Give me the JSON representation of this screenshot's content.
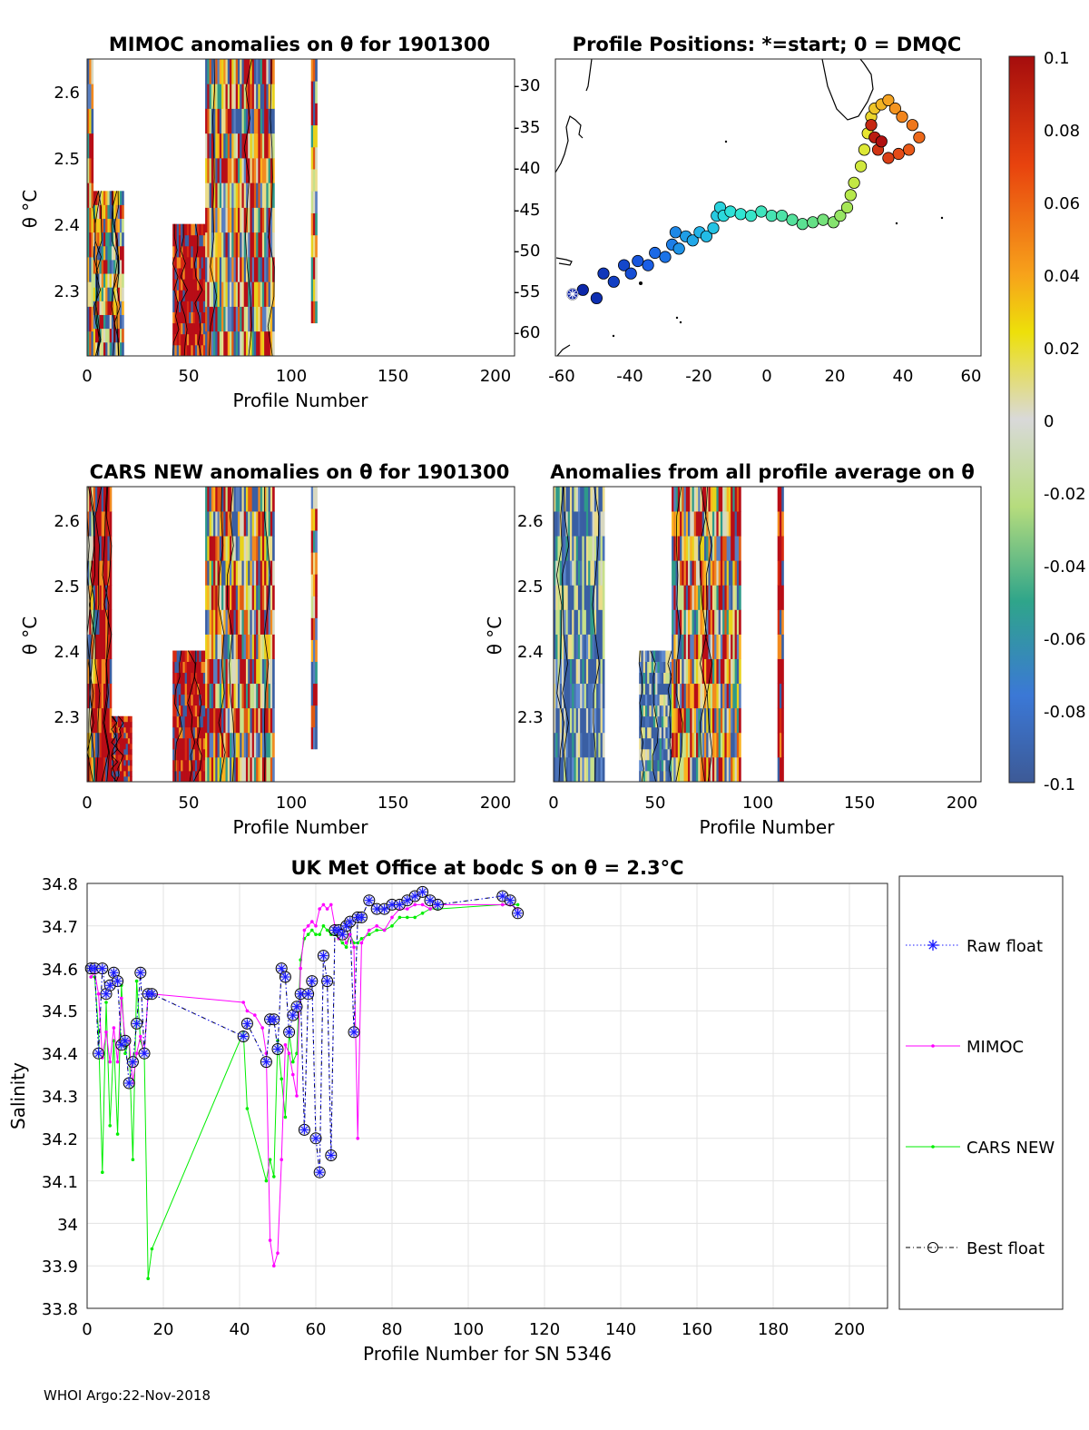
{
  "footer": "WHOI Argo:22-Nov-2018",
  "colors": {
    "map_hi": "#b80d17",
    "map_lo": "#3a5fa3",
    "contour": "#000000",
    "mimoc": "#ff00ff",
    "cars": "#00ee00",
    "raw": "#1a1aff",
    "best": "#000000"
  },
  "chart_data": [
    {
      "id": "mimoc",
      "type": "heatmap",
      "title": "MIMOC anomalies on θ  for 1901300",
      "xlabel": "Profile Number",
      "ylabel": "θ °C",
      "xlim": [
        0,
        210
      ],
      "ylim": [
        2.2,
        2.65
      ],
      "xticks": [
        "0",
        "50",
        "100",
        "150",
        "200"
      ],
      "yticks": [
        "2.3",
        "2.4",
        "2.5",
        "2.6"
      ],
      "columns": [
        [
          0,
          3,
          "2.2-2.65",
          "mixed"
        ],
        [
          3,
          12,
          "2.2-2.45",
          "mixed"
        ],
        [
          12,
          18,
          "2.2-2.45",
          "mixed"
        ],
        [
          42,
          58,
          "2.2-2.4",
          "high"
        ],
        [
          58,
          92,
          "2.2-2.65",
          "mixed"
        ],
        [
          110,
          113,
          "2.25-2.65",
          "mixed"
        ]
      ]
    },
    {
      "id": "positions",
      "type": "scatter",
      "title": "Profile Positions: *=start; 0 = DMQC",
      "xlim": [
        -62,
        62
      ],
      "ylim": [
        -63,
        -27
      ],
      "xticks": [
        "-60",
        "-40",
        "-20",
        "0",
        "20",
        "40",
        "60"
      ],
      "yticks": [
        "-30",
        "-35",
        "-40",
        "-45",
        "-50",
        "-55",
        "-60"
      ],
      "start": [
        -57,
        -55.5
      ],
      "track": [
        [
          -57,
          -55.5
        ],
        [
          -54,
          -55
        ],
        [
          -50,
          -56
        ],
        [
          -48,
          -53
        ],
        [
          -45,
          -54
        ],
        [
          -42,
          -52
        ],
        [
          -40,
          -53
        ],
        [
          -38,
          -51.5
        ],
        [
          -35,
          -52
        ],
        [
          -33,
          -50.5
        ],
        [
          -30,
          -51
        ],
        [
          -28,
          -49.5
        ],
        [
          -27,
          -48
        ],
        [
          -26,
          -50
        ],
        [
          -24,
          -48.5
        ],
        [
          -22,
          -49
        ],
        [
          -20,
          -48
        ],
        [
          -18,
          -48.5
        ],
        [
          -16,
          -47.5
        ],
        [
          -15,
          -46
        ],
        [
          -14,
          -45
        ],
        [
          -13,
          -46
        ],
        [
          -11,
          -45.5
        ],
        [
          -8,
          -45.8
        ],
        [
          -5,
          -46
        ],
        [
          -2,
          -45.5
        ],
        [
          1,
          -46
        ],
        [
          4,
          -46
        ],
        [
          7,
          -46.5
        ],
        [
          10,
          -47
        ],
        [
          13,
          -46.8
        ],
        [
          16,
          -46.5
        ],
        [
          19,
          -46.8
        ],
        [
          21,
          -46
        ],
        [
          23,
          -45
        ],
        [
          24,
          -43.5
        ],
        [
          25,
          -42
        ],
        [
          27,
          -40
        ],
        [
          28,
          -38
        ],
        [
          29,
          -36
        ],
        [
          30,
          -34
        ],
        [
          31,
          -33
        ],
        [
          33,
          -32.5
        ],
        [
          35,
          -32
        ],
        [
          37,
          -33
        ],
        [
          39,
          -34
        ],
        [
          42,
          -35
        ],
        [
          44,
          -36.5
        ],
        [
          41,
          -38
        ],
        [
          38,
          -38.5
        ],
        [
          35,
          -39
        ],
        [
          32,
          -38
        ],
        [
          30,
          -35
        ],
        [
          31,
          -36.5
        ],
        [
          33,
          -37
        ]
      ]
    },
    {
      "id": "cars",
      "type": "heatmap",
      "title": "CARS NEW anomalies on θ for 1901300",
      "xlabel": "Profile Number",
      "ylabel": "θ °C",
      "xlim": [
        0,
        210
      ],
      "ylim": [
        2.2,
        2.65
      ],
      "xticks": [
        "0",
        "50",
        "100",
        "150",
        "200"
      ],
      "yticks": [
        "2.3",
        "2.4",
        "2.5",
        "2.6"
      ],
      "columns": [
        [
          0,
          4,
          "2.2-2.65",
          "mixed"
        ],
        [
          4,
          12,
          "2.2-2.65",
          "high"
        ],
        [
          12,
          22,
          "2.2-2.3",
          "high"
        ],
        [
          42,
          58,
          "2.2-2.4",
          "high"
        ],
        [
          58,
          92,
          "2.2-2.65",
          "mixed"
        ],
        [
          110,
          113,
          "2.25-2.65",
          "mixed"
        ]
      ]
    },
    {
      "id": "avg",
      "type": "heatmap",
      "title": "Anomalies from all profile average on θ",
      "xlabel": "Profile Number",
      "ylabel": "θ °C",
      "xlim": [
        0,
        210
      ],
      "ylim": [
        2.2,
        2.65
      ],
      "xticks": [
        "0",
        "50",
        "100",
        "150",
        "200"
      ],
      "yticks": [
        "2.3",
        "2.4",
        "2.5",
        "2.6"
      ],
      "columns": [
        [
          0,
          25,
          "2.2-2.65",
          "low"
        ],
        [
          42,
          58,
          "2.2-2.4",
          "low"
        ],
        [
          58,
          92,
          "2.2-2.65",
          "mixed"
        ],
        [
          110,
          113,
          "2.2-2.65",
          "high"
        ]
      ]
    },
    {
      "id": "colorbar",
      "type": "colorbar",
      "ticks": [
        "0.1",
        "0.08",
        "0.06",
        "0.04",
        "0.02",
        "0",
        "-0.02",
        "-0.04",
        "-0.06",
        "-0.08",
        "-0.1"
      ],
      "range": [
        -0.1,
        0.1
      ]
    },
    {
      "id": "salinity",
      "type": "line",
      "title": "UK Met Office at bodc S on θ = 2.3°C",
      "xlabel": "Profile Number for SN 5346",
      "ylabel": "Salinity",
      "xlim": [
        0,
        210
      ],
      "ylim": [
        33.8,
        34.8
      ],
      "xticks": [
        "0",
        "20",
        "40",
        "60",
        "80",
        "100",
        "120",
        "140",
        "160",
        "180",
        "200"
      ],
      "yticks": [
        "34.8",
        "34.7",
        "34.6",
        "34.5",
        "34.4",
        "34.3",
        "34.2",
        "34.1",
        "34",
        "33.9",
        "33.8"
      ],
      "series": [
        {
          "name": "MIMOC",
          "x": [
            1,
            2,
            3,
            4,
            5,
            6,
            7,
            8,
            9,
            10,
            11,
            12,
            13,
            14,
            15,
            16,
            17,
            41,
            42,
            44,
            46,
            47,
            48,
            49,
            50,
            51,
            52,
            53,
            54,
            55,
            56,
            57,
            58,
            59,
            60,
            61,
            62,
            63,
            64,
            65,
            66,
            67,
            68,
            69,
            70,
            71,
            72,
            74,
            76,
            78,
            80,
            82,
            84,
            86,
            88,
            90,
            92,
            109,
            111,
            113
          ],
          "y": [
            34.58,
            34.59,
            34.54,
            34.39,
            34.45,
            34.38,
            34.46,
            34.38,
            34.53,
            34.43,
            34.43,
            34.33,
            34.4,
            34.44,
            34.4,
            34.54,
            34.54,
            34.52,
            34.5,
            34.49,
            34.46,
            34.4,
            33.96,
            33.9,
            33.93,
            34.15,
            34.42,
            34.4,
            34.35,
            34.3,
            34.6,
            34.69,
            34.7,
            34.71,
            34.7,
            34.74,
            34.75,
            34.74,
            34.75,
            34.7,
            34.67,
            34.68,
            34.66,
            34.68,
            34.65,
            34.2,
            34.66,
            34.69,
            34.7,
            34.69,
            34.72,
            34.74,
            34.74,
            34.75,
            34.75,
            34.74,
            34.75,
            34.75,
            34.75,
            34.74
          ]
        },
        {
          "name": "CARS NEW",
          "x": [
            1,
            2,
            3,
            4,
            5,
            6,
            7,
            8,
            9,
            10,
            11,
            12,
            13,
            14,
            15,
            16,
            17,
            41,
            42,
            47,
            48,
            49,
            50,
            51,
            52,
            53,
            54,
            55,
            56,
            57,
            58,
            59,
            60,
            61,
            62,
            63,
            64,
            65,
            66,
            67,
            68,
            69,
            70,
            71,
            72,
            74,
            76,
            78,
            80,
            82,
            84,
            86,
            88,
            90,
            92,
            109,
            111,
            113
          ],
          "y": [
            34.58,
            34.58,
            34.45,
            34.12,
            34.52,
            34.23,
            34.43,
            34.21,
            34.56,
            34.4,
            34.43,
            34.15,
            34.57,
            34.43,
            34.4,
            33.87,
            33.94,
            34.45,
            34.27,
            34.1,
            34.15,
            34.11,
            34.43,
            34.34,
            34.25,
            34.45,
            34.38,
            34.4,
            34.62,
            34.67,
            34.68,
            34.69,
            34.68,
            34.68,
            34.7,
            34.69,
            34.68,
            34.68,
            34.67,
            34.66,
            34.65,
            34.68,
            34.66,
            34.66,
            34.67,
            34.68,
            34.69,
            34.69,
            34.7,
            34.72,
            34.72,
            34.72,
            34.73,
            34.74,
            34.74,
            34.75,
            34.75,
            34.75
          ]
        },
        {
          "name": "Raw float",
          "x": [
            1,
            2,
            3,
            4,
            5,
            6,
            7,
            8,
            9,
            10,
            11,
            12,
            13,
            14,
            15,
            16,
            17,
            41,
            42,
            47,
            48,
            49,
            50,
            51,
            52,
            53,
            54,
            55,
            56,
            57,
            58,
            59,
            60,
            61,
            62,
            63,
            64,
            65,
            66,
            67,
            68,
            69,
            70,
            71,
            72,
            74,
            76,
            78,
            80,
            82,
            84,
            86,
            88,
            90,
            92,
            109,
            111,
            113
          ],
          "y": [
            34.6,
            34.6,
            34.4,
            34.6,
            34.54,
            34.56,
            34.59,
            34.57,
            34.42,
            34.43,
            34.33,
            34.38,
            34.47,
            34.59,
            34.4,
            34.54,
            34.54,
            34.44,
            34.47,
            34.38,
            34.48,
            34.48,
            34.41,
            34.6,
            34.58,
            34.45,
            34.49,
            34.51,
            34.54,
            34.22,
            34.54,
            34.57,
            34.2,
            34.12,
            34.63,
            34.57,
            34.16,
            34.69,
            34.69,
            34.68,
            34.7,
            34.71,
            34.45,
            34.72,
            34.72,
            34.76,
            34.74,
            34.74,
            34.75,
            34.75,
            34.76,
            34.77,
            34.78,
            34.76,
            34.75,
            34.77,
            34.76,
            34.73
          ]
        },
        {
          "name": "Best float",
          "x": [
            1,
            2,
            3,
            4,
            5,
            6,
            7,
            8,
            9,
            10,
            11,
            12,
            13,
            14,
            15,
            16,
            17,
            41,
            42,
            47,
            48,
            49,
            50,
            51,
            52,
            53,
            54,
            55,
            56,
            57,
            58,
            59,
            60,
            61,
            62,
            63,
            64,
            65,
            66,
            67,
            68,
            69,
            70,
            71,
            72,
            74,
            76,
            78,
            80,
            82,
            84,
            86,
            88,
            90,
            92,
            109,
            111,
            113
          ],
          "y": [
            34.6,
            34.6,
            34.4,
            34.6,
            34.54,
            34.56,
            34.59,
            34.57,
            34.42,
            34.43,
            34.33,
            34.38,
            34.47,
            34.59,
            34.4,
            34.54,
            34.54,
            34.44,
            34.47,
            34.38,
            34.48,
            34.48,
            34.41,
            34.6,
            34.58,
            34.45,
            34.49,
            34.51,
            34.54,
            34.22,
            34.54,
            34.57,
            34.2,
            34.12,
            34.63,
            34.57,
            34.16,
            34.69,
            34.69,
            34.68,
            34.7,
            34.71,
            34.45,
            34.72,
            34.72,
            34.76,
            34.74,
            34.74,
            34.75,
            34.75,
            34.76,
            34.77,
            34.78,
            34.76,
            34.75,
            34.77,
            34.76,
            34.73
          ]
        }
      ],
      "legend": [
        "Raw float",
        "MIMOC",
        "CARS NEW",
        "Best float"
      ]
    }
  ]
}
